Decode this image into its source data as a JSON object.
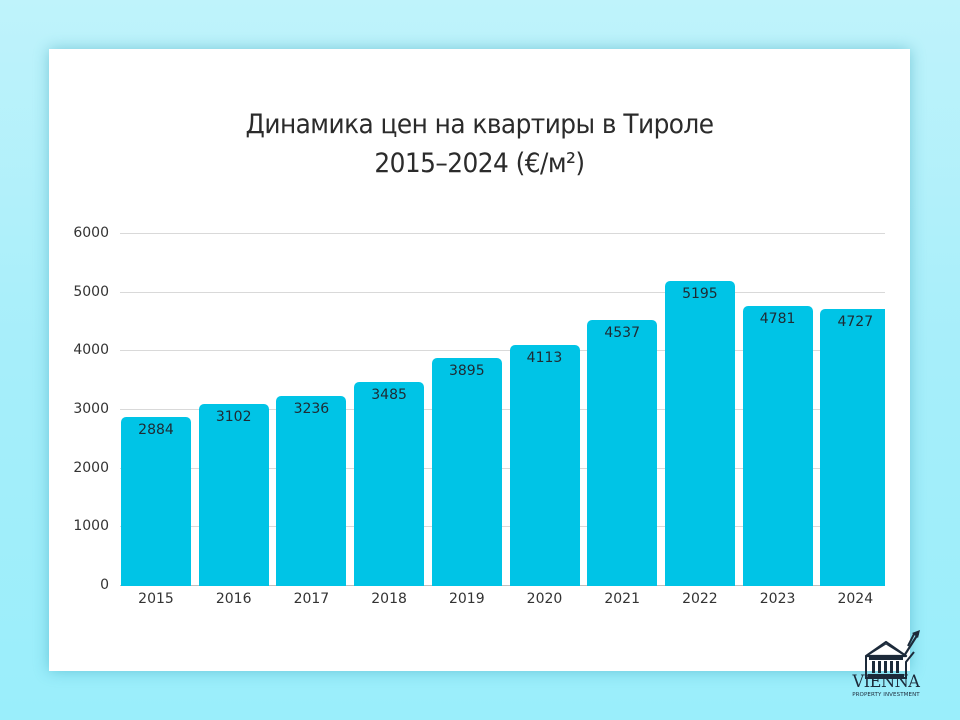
{
  "chart_data": {
    "type": "bar",
    "title": "Динамика цен на квартиры в Тироле 2015–2024 (€/м²)",
    "title_lines": [
      "Динамика цен на квартиры в Тироле",
      "2015–2024 (€/м²)"
    ],
    "categories": [
      "2015",
      "2016",
      "2017",
      "2018",
      "2019",
      "2020",
      "2021",
      "2022",
      "2023",
      "2024"
    ],
    "values": [
      2884,
      3102,
      3236,
      3485,
      3895,
      4113,
      4537,
      5195,
      4781,
      4727
    ],
    "data_labels": [
      "2884",
      "3102",
      "3236",
      "3485",
      "3895",
      "4113",
      "4537",
      "5195",
      "4781",
      "4727"
    ],
    "xlabel": "",
    "ylabel": "",
    "ylim": [
      0,
      6000
    ],
    "yticks": [
      "0",
      "1000",
      "2000",
      "3000",
      "4000",
      "5000",
      "6000"
    ],
    "grid": true,
    "legend": null,
    "bar_color": "#00c4e6"
  },
  "branding": {
    "logo_icon": "bank-building-with-rising-arrow-icon",
    "name": "VIENNA",
    "subtitle": "PROPERTY INVESTMENT"
  }
}
